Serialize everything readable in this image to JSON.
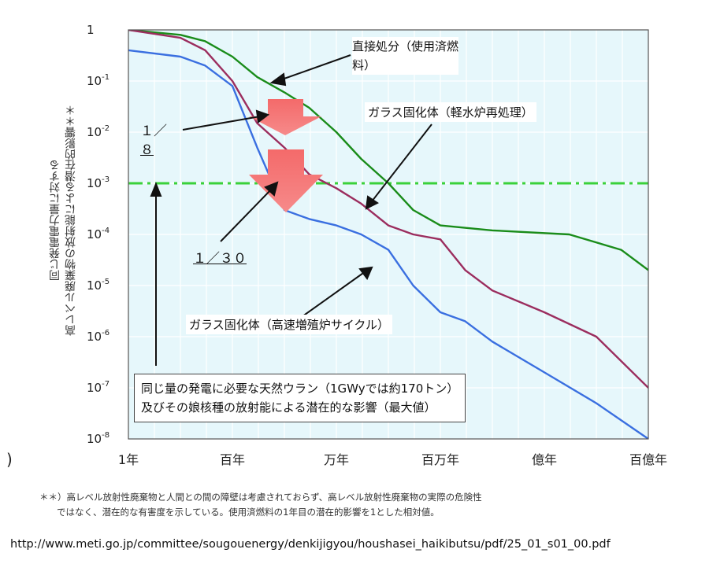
{
  "chart_data": {
    "type": "line",
    "ylabel_line1": "同じ発電電力量に対する",
    "ylabel_line2": "高レベル廃棄物の放射能による潜在的影響＊＊",
    "y_scale": "log",
    "ylim": [
      1e-08,
      1
    ],
    "y_ticks": [
      {
        "label": "1",
        "exp": ""
      },
      {
        "label": "10",
        "exp": "-1"
      },
      {
        "label": "10",
        "exp": "-2"
      },
      {
        "label": "10",
        "exp": "-3"
      },
      {
        "label": "10",
        "exp": "-4"
      },
      {
        "label": "10",
        "exp": "-5"
      },
      {
        "label": "10",
        "exp": "-6"
      },
      {
        "label": "10",
        "exp": "-7"
      },
      {
        "label": "10",
        "exp": "-8"
      }
    ],
    "x_scale": "log",
    "x_unit": "years",
    "xlim": [
      1,
      10000000000
    ],
    "x_ticks": [
      {
        "label": "1年",
        "value": 1
      },
      {
        "label": "百年",
        "value": 100
      },
      {
        "label": "万年",
        "value": 10000
      },
      {
        "label": "百万年",
        "value": 1000000
      },
      {
        "label": "億年",
        "value": 100000000
      },
      {
        "label": "百億年",
        "value": 10000000000
      }
    ],
    "grid": true,
    "series": [
      {
        "name": "直接処分（使用済燃料）",
        "color": "#1a8c1a",
        "points": [
          [
            1,
            1
          ],
          [
            10,
            0.8
          ],
          [
            30,
            0.6
          ],
          [
            100,
            0.3
          ],
          [
            300,
            0.12
          ],
          [
            1000,
            0.06
          ],
          [
            3000,
            0.03
          ],
          [
            10000,
            0.01
          ],
          [
            30000,
            0.003
          ],
          [
            100000,
            0.001
          ],
          [
            300000,
            0.0003
          ],
          [
            1000000,
            0.00015
          ],
          [
            10000000,
            0.00012
          ],
          [
            300000000,
            0.0001
          ],
          [
            3000000000,
            5e-05
          ],
          [
            10000000000,
            2e-05
          ]
        ]
      },
      {
        "name": "ガラス固化体（軽水炉再処理）",
        "color": "#9b2d5e",
        "points": [
          [
            1,
            1
          ],
          [
            10,
            0.7
          ],
          [
            30,
            0.4
          ],
          [
            100,
            0.1
          ],
          [
            300,
            0.015
          ],
          [
            1000,
            0.005
          ],
          [
            3000,
            0.0015
          ],
          [
            10000,
            0.0008
          ],
          [
            30000,
            0.0004
          ],
          [
            100000,
            0.00015
          ],
          [
            300000,
            0.0001
          ],
          [
            1000000,
            8e-05
          ],
          [
            3000000,
            2e-05
          ],
          [
            10000000,
            8e-06
          ],
          [
            100000000,
            3e-06
          ],
          [
            1000000000,
            1e-06
          ],
          [
            10000000000,
            1e-07
          ]
        ]
      },
      {
        "name": "ガラス固化体（高速増殖炉サイクル）",
        "color": "#3a6fe0",
        "points": [
          [
            1,
            0.4
          ],
          [
            10,
            0.3
          ],
          [
            30,
            0.2
          ],
          [
            100,
            0.08
          ],
          [
            300,
            0.005
          ],
          [
            1000,
            0.0003
          ],
          [
            3000,
            0.0002
          ],
          [
            10000,
            0.00015
          ],
          [
            30000,
            0.0001
          ],
          [
            100000,
            5e-05
          ],
          [
            300000,
            1e-05
          ],
          [
            1000000,
            3e-06
          ],
          [
            3000000,
            2e-06
          ],
          [
            10000000,
            8e-07
          ],
          [
            100000000,
            2e-07
          ],
          [
            1000000000,
            5e-08
          ],
          [
            10000000000,
            1e-08
          ]
        ]
      }
    ],
    "reference": {
      "value": 0.001,
      "color": "#3ad13a",
      "style": "dash-dot",
      "label_line1": "同じ量の発電に必要な天然ウラン（1GWyでは約170トン）",
      "label_line2": "及びその娘核種の放射能による潜在的な影響（最大値）"
    },
    "annotations": [
      {
        "id": "direct",
        "line1": "直接処分（使用済燃",
        "line2": "料）"
      },
      {
        "id": "lwr",
        "line1": "ガラス固化体（軽水炉再処理）"
      },
      {
        "id": "fbr",
        "line1": "ガラス固化体（高速増殖炉サイクル）"
      },
      {
        "id": "r8",
        "line1": "１／",
        "line2": "８"
      },
      {
        "id": "r30",
        "line1": "１／３０"
      }
    ]
  },
  "paren": ")",
  "footnote": {
    "line1": "＊＊）高レベル放射性廃棄物と人間との間の障壁は考慮されておらず、高レベル放射性廃棄物の実際の危険性",
    "line2": "ではなく、潜在的な有害度を示している。使用済燃料の1年目の潜在的影響を1とした相対値。"
  },
  "source_url": "http://www.meti.go.jp/committee/sougouenergy/denkijigyou/houshasei_haikibutsu/pdf/25_01_s01_00.pdf"
}
